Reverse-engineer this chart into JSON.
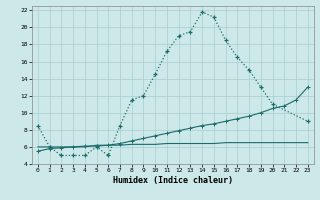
{
  "xlabel": "Humidex (Indice chaleur)",
  "xlim": [
    -0.5,
    23.5
  ],
  "ylim": [
    4,
    22.5
  ],
  "yticks": [
    4,
    6,
    8,
    10,
    12,
    14,
    16,
    18,
    20,
    22
  ],
  "xticks": [
    0,
    1,
    2,
    3,
    4,
    5,
    6,
    7,
    8,
    9,
    10,
    11,
    12,
    13,
    14,
    15,
    16,
    17,
    18,
    19,
    20,
    21,
    22,
    23
  ],
  "bg_color": "#cce8e8",
  "grid_color": "#aacece",
  "line_color": "#1a6b6b",
  "line1_x": [
    0,
    1,
    2,
    3,
    4,
    5,
    6,
    7,
    8,
    9,
    10,
    11,
    12,
    13,
    14,
    15,
    16,
    17,
    18,
    19,
    20,
    23
  ],
  "line1_y": [
    8.5,
    6.0,
    5.0,
    5.0,
    5.0,
    6.0,
    5.0,
    8.5,
    11.5,
    12.0,
    14.5,
    17.2,
    19.0,
    19.5,
    21.8,
    21.2,
    18.5,
    16.5,
    15.0,
    13.0,
    11.0,
    9.0
  ],
  "line2_x": [
    0,
    1,
    2,
    3,
    4,
    5,
    6,
    7,
    8,
    9,
    10,
    11,
    12,
    13,
    14,
    15,
    16,
    17,
    18,
    19,
    20,
    21,
    22,
    23
  ],
  "line2_y": [
    5.5,
    5.8,
    5.9,
    6.0,
    6.1,
    6.1,
    6.2,
    6.4,
    6.7,
    7.0,
    7.3,
    7.6,
    7.9,
    8.2,
    8.5,
    8.7,
    9.0,
    9.3,
    9.6,
    10.0,
    10.5,
    10.8,
    11.5,
    13.0
  ],
  "line3_x": [
    0,
    1,
    2,
    3,
    4,
    5,
    6,
    7,
    8,
    9,
    10,
    11,
    12,
    13,
    14,
    15,
    16,
    17,
    18,
    19,
    20,
    21,
    22,
    23
  ],
  "line3_y": [
    6.0,
    6.0,
    6.0,
    6.0,
    6.0,
    6.2,
    6.2,
    6.2,
    6.3,
    6.3,
    6.3,
    6.4,
    6.4,
    6.4,
    6.4,
    6.4,
    6.5,
    6.5,
    6.5,
    6.5,
    6.5,
    6.5,
    6.5,
    6.5
  ]
}
